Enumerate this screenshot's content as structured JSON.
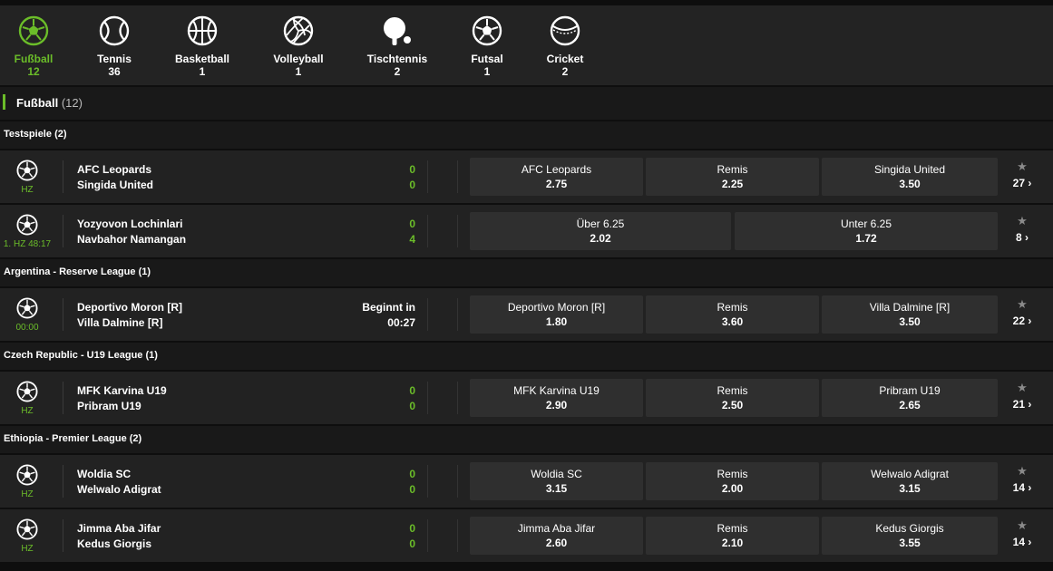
{
  "sports_nav": [
    {
      "name": "Fußball",
      "count": "12",
      "icon": "football-icon",
      "active": true
    },
    {
      "name": "Tennis",
      "count": "36",
      "icon": "tennis-ball-icon",
      "active": false
    },
    {
      "name": "Basketball",
      "count": "1",
      "icon": "basketball-icon",
      "active": false
    },
    {
      "name": "Volleyball",
      "count": "1",
      "icon": "volleyball-icon",
      "active": false
    },
    {
      "name": "Tischtennis",
      "count": "2",
      "icon": "table-tennis-icon",
      "active": false
    },
    {
      "name": "Futsal",
      "count": "1",
      "icon": "futsal-icon",
      "active": false
    },
    {
      "name": "Cricket",
      "count": "2",
      "icon": "cricket-ball-icon",
      "active": false
    }
  ],
  "section": {
    "title": "Fußball",
    "count": "(12)"
  },
  "leagues": [
    {
      "name": "Testspiele",
      "count": "(2)"
    },
    {
      "name": "Argentina - Reserve League",
      "count": "(1)"
    },
    {
      "name": "Czech Republic - U19 League",
      "count": "(1)"
    },
    {
      "name": "Ethiopia - Premier League",
      "count": "(2)"
    }
  ],
  "events": [
    {
      "status": "HZ",
      "home": "AFC Leopards",
      "away": "Singida United",
      "score_home": "0",
      "score_away": "0",
      "odds": [
        {
          "label": "AFC Leopards",
          "value": "2.75"
        },
        {
          "label": "Remis",
          "value": "2.25"
        },
        {
          "label": "Singida United",
          "value": "3.50"
        }
      ],
      "more": "27 ›"
    },
    {
      "status": "1. HZ 48:17",
      "home": "Yozyovon Lochinlari",
      "away": "Navbahor Namangan",
      "score_home": "0",
      "score_away": "4",
      "odds": [
        {
          "label": "Über  6.25",
          "value": "2.02"
        },
        {
          "label": "Unter  6.25",
          "value": "1.72"
        }
      ],
      "more": "8 ›"
    },
    {
      "status": "00:00",
      "home": "Deportivo Moron [R]",
      "away": "Villa Dalmine [R]",
      "starts_label": "Beginnt in",
      "starts_time": "00:27",
      "odds": [
        {
          "label": "Deportivo Moron [R]",
          "value": "1.80"
        },
        {
          "label": "Remis",
          "value": "3.60"
        },
        {
          "label": "Villa Dalmine [R]",
          "value": "3.50"
        }
      ],
      "more": "22 ›"
    },
    {
      "status": "HZ",
      "home": "MFK Karvina U19",
      "away": "Pribram U19",
      "score_home": "0",
      "score_away": "0",
      "odds": [
        {
          "label": "MFK Karvina U19",
          "value": "2.90"
        },
        {
          "label": "Remis",
          "value": "2.50"
        },
        {
          "label": "Pribram U19",
          "value": "2.65"
        }
      ],
      "more": "21 ›"
    },
    {
      "status": "HZ",
      "home": "Woldia SC",
      "away": "Welwalo Adigrat",
      "score_home": "0",
      "score_away": "0",
      "odds": [
        {
          "label": "Woldia SC",
          "value": "3.15"
        },
        {
          "label": "Remis",
          "value": "2.00"
        },
        {
          "label": "Welwalo Adigrat",
          "value": "3.15"
        }
      ],
      "more": "14 ›"
    },
    {
      "status": "HZ",
      "home": "Jimma Aba Jifar",
      "away": "Kedus Giorgis",
      "score_home": "0",
      "score_away": "0",
      "odds": [
        {
          "label": "Jimma Aba Jifar",
          "value": "2.60"
        },
        {
          "label": "Remis",
          "value": "2.10"
        },
        {
          "label": "Kedus Giorgis",
          "value": "3.55"
        }
      ],
      "more": "14 ›"
    }
  ],
  "favorite_icon": "star-icon",
  "colors": {
    "accent": "#6bbd29",
    "background": "#0e0e0e",
    "row": "#222222",
    "odd_cell": "#2f2f2f"
  }
}
